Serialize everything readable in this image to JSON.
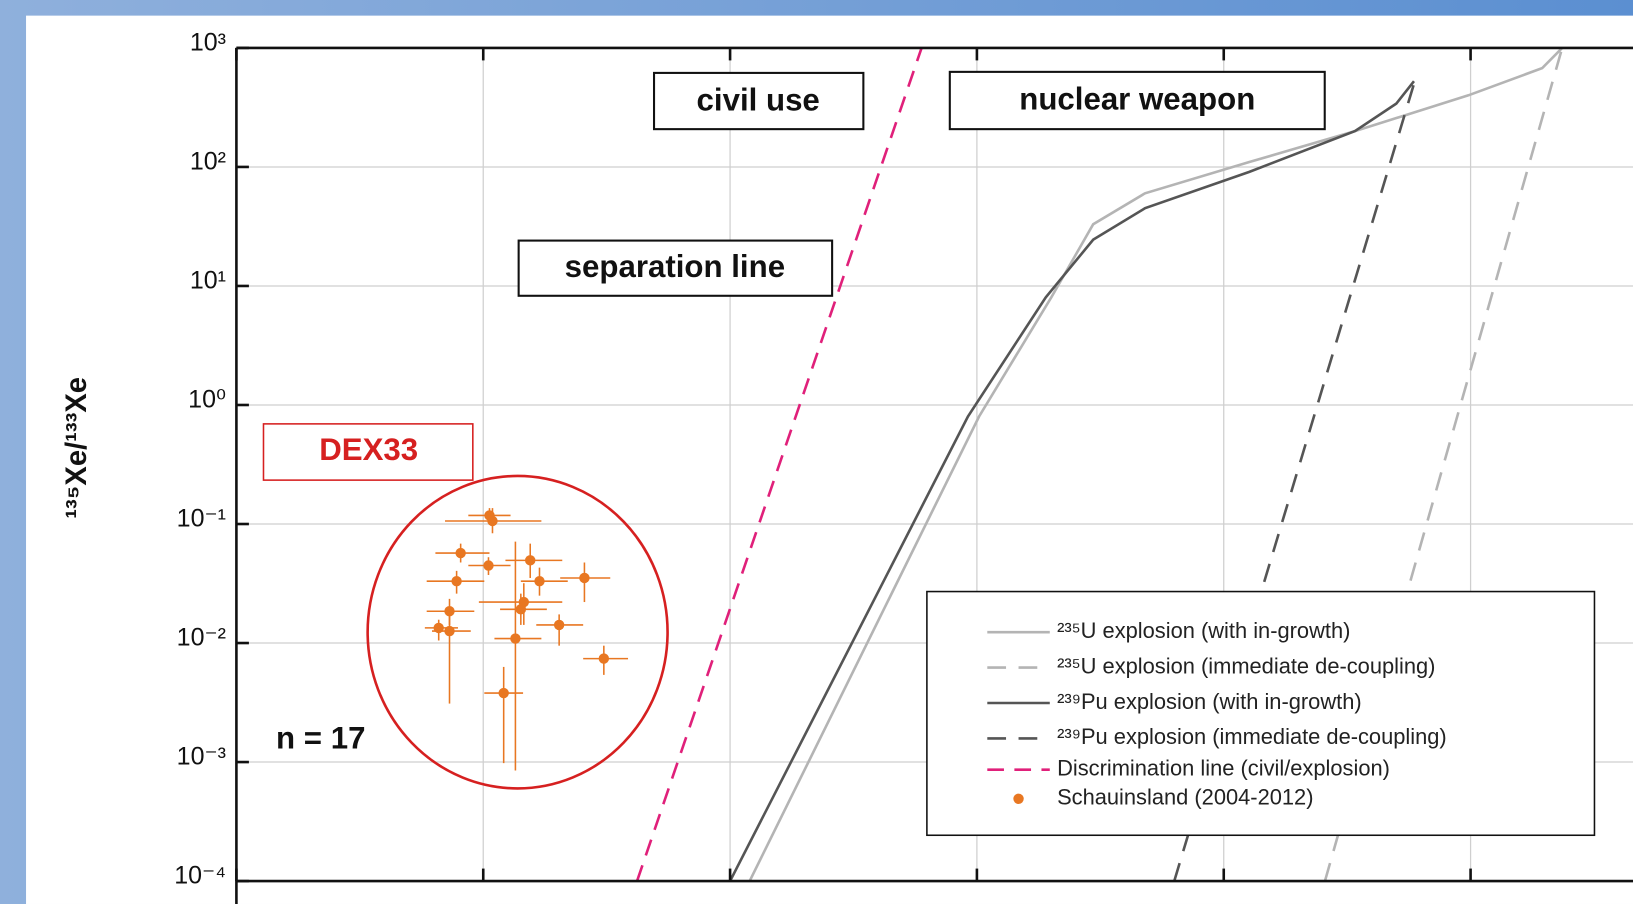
{
  "chart_data": {
    "type": "line",
    "ylabel": "¹³⁵Xe/¹³³Xe",
    "xscale": "log",
    "yscale": "log",
    "grid": true,
    "xlim": [
      0.001,
      455
    ],
    "xticks": [
      0.001,
      0.01,
      0.1,
      1,
      10,
      100
    ],
    "ylim": [
      0.0001,
      1000
    ],
    "yticks": [
      {
        "value": 1000,
        "label": "10³"
      },
      {
        "value": 100,
        "label": "10²"
      },
      {
        "value": 10,
        "label": "10¹"
      },
      {
        "value": 1,
        "label": "10⁰"
      },
      {
        "value": 0.1,
        "label": "10⁻¹"
      },
      {
        "value": 0.01,
        "label": "10⁻²"
      },
      {
        "value": 0.001,
        "label": "10⁻³"
      },
      {
        "value": 0.0001,
        "label": "10⁻⁴"
      }
    ],
    "annotations": [
      {
        "text": "civil use"
      },
      {
        "text": "nuclear weapon"
      },
      {
        "text": "separation line"
      },
      {
        "text": "DEX33",
        "color": "#d62020"
      },
      {
        "text": "n = 17"
      }
    ],
    "series": [
      {
        "name": "²³⁵U explosion (with in-growth)",
        "type": "line",
        "color": "#b4b4b4",
        "dash": "none",
        "x": [
          0.12,
          1.02,
          2.0,
          2.96,
          4.8,
          12.7,
          34,
          98,
          195,
          235
        ],
        "values": [
          0.0001,
          0.8,
          8,
          33,
          60,
          110,
          200,
          400,
          676,
          1000
        ]
      },
      {
        "name": "²³⁵U explosion (immediate de-coupling)",
        "type": "line",
        "color": "#b4b4b4",
        "dash": "18 12",
        "x": [
          25.7,
          235
        ],
        "values": [
          0.0001,
          1000
        ]
      },
      {
        "name": "²³⁹Pu explosion (with in-growth)",
        "type": "line",
        "color": "#555555",
        "dash": "none",
        "x": [
          0.1,
          0.92,
          1.9,
          2.96,
          4.8,
          12.7,
          34,
          50,
          59
        ],
        "values": [
          0.0001,
          0.8,
          8,
          24.5,
          45,
          91,
          200,
          340,
          525
        ]
      },
      {
        "name": "²³⁹Pu explosion (immediate de-coupling)",
        "type": "line",
        "color": "#555555",
        "dash": "18 12",
        "x": [
          6.3,
          59
        ],
        "values": [
          0.0001,
          500
        ]
      },
      {
        "name": "Discrimination line (civil/explosion)",
        "type": "line",
        "color": "#e0207a",
        "dash": "16 10",
        "x": [
          0.042,
          0.597
        ],
        "values": [
          0.0001,
          1000
        ]
      },
      {
        "name": "Schauinsland (2004-2012)",
        "type": "scatter",
        "color": "#e87722",
        "x": [
          0.0109,
          0.0106,
          0.0081,
          0.0105,
          0.0155,
          0.0257,
          0.0169,
          0.0078,
          0.0146,
          0.0142,
          0.0073,
          0.0203,
          0.0066,
          0.0073,
          0.0135,
          0.0308,
          0.0121
        ],
        "values": [
          0.106,
          0.118,
          0.057,
          0.0448,
          0.0495,
          0.0352,
          0.0331,
          0.0331,
          0.0221,
          0.0192,
          0.0185,
          0.0142,
          0.0134,
          0.0126,
          0.0109,
          0.0074,
          0.0038
        ],
        "xerr": [
          [
            0.007,
            0.0172
          ],
          [
            0.0087,
            0.0129
          ],
          [
            0.0064,
            0.0106
          ],
          [
            0.0087,
            0.0129
          ],
          [
            0.0123,
            0.0209
          ],
          [
            0.0205,
            0.0327
          ],
          [
            0.0142,
            0.022
          ],
          [
            0.0059,
            0.0101
          ],
          [
            0.0096,
            0.0209
          ],
          [
            0.0117,
            0.0181
          ],
          [
            0.0059,
            0.0092
          ],
          [
            0.0164,
            0.0254
          ],
          [
            0.0058,
            0.0079
          ],
          [
            0.0062,
            0.0089
          ],
          [
            0.0111,
            0.0172
          ],
          [
            0.0254,
            0.0386
          ],
          [
            0.0101,
            0.0145
          ]
        ],
        "yerr": [
          [
            0.0836,
            0.136
          ],
          [
            0.104,
            0.136
          ],
          [
            0.0475,
            0.0684
          ],
          [
            0.0373,
            0.0526
          ],
          [
            0.0352,
            0.0684
          ],
          [
            0.0221,
            0.0475
          ],
          [
            0.025,
            0.043
          ],
          [
            0.026,
            0.0404
          ],
          [
            0.0142,
            0.0318
          ],
          [
            0.0142,
            0.026
          ],
          [
            0.0142,
            0.0235
          ],
          [
            0.0095,
            0.0174
          ],
          [
            0.0105,
            0.0157
          ],
          [
            0.0031,
            0.0174
          ],
          [
            0.00085,
            0.0711
          ],
          [
            0.0054,
            0.0095
          ],
          [
            0.00098,
            0.0063
          ]
        ]
      }
    ]
  }
}
